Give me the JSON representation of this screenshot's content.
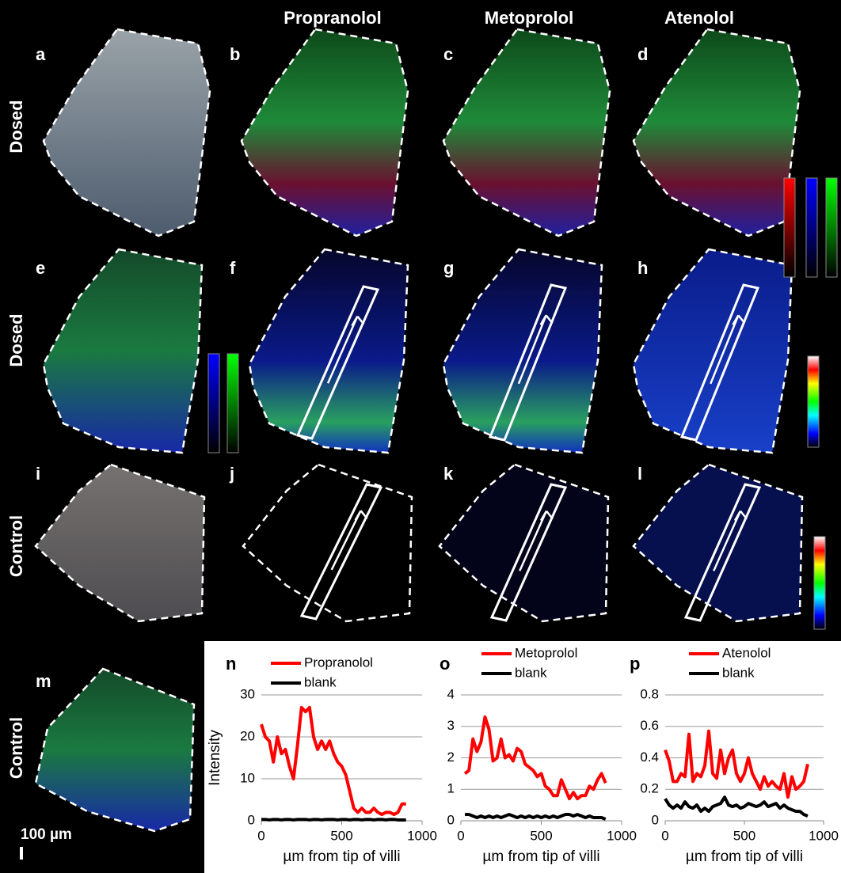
{
  "figure": {
    "column_headers": [
      "Propranolol",
      "Metoprolol",
      "Atenolol"
    ],
    "row_labels": [
      "Dosed",
      "Dosed",
      "Control",
      "Control"
    ],
    "panel_letters": [
      "a",
      "b",
      "c",
      "d",
      "e",
      "f",
      "g",
      "h",
      "i",
      "j",
      "k",
      "l",
      "m",
      "n",
      "o",
      "p"
    ],
    "scale_bar": "100 µm"
  },
  "chart_data": [
    {
      "type": "line",
      "y_label": "Intensity",
      "x_label": "µm from tip of villi",
      "xlim": [
        0,
        1000
      ],
      "xticks": [
        0,
        500,
        1000
      ],
      "ylim": [
        0,
        30
      ],
      "yticks": [
        0,
        10,
        20,
        30
      ],
      "grid": true,
      "x": [
        0,
        25,
        50,
        75,
        100,
        125,
        150,
        175,
        200,
        225,
        250,
        275,
        300,
        325,
        350,
        375,
        400,
        425,
        450,
        475,
        500,
        525,
        550,
        575,
        600,
        625,
        650,
        675,
        700,
        725,
        750,
        775,
        800,
        825,
        850,
        875,
        900
      ],
      "series": [
        {
          "name": "Propranolol",
          "color": "#ff0000",
          "values": [
            23,
            20,
            19,
            14,
            20,
            16,
            17,
            13,
            10,
            18,
            27,
            26,
            27,
            20,
            17,
            19,
            17,
            19,
            16,
            14,
            13,
            11,
            7,
            3,
            2,
            3,
            2,
            2,
            3,
            2,
            1.5,
            2,
            2,
            1.5,
            2,
            4,
            4
          ]
        },
        {
          "name": "blank",
          "color": "#000000",
          "values": [
            0.3,
            0.3,
            0.2,
            0.3,
            0.3,
            0.2,
            0.3,
            0.3,
            0.2,
            0.3,
            0.3,
            0.3,
            0.2,
            0.3,
            0.3,
            0.2,
            0.3,
            0.3,
            0.3,
            0.2,
            0.3,
            0.3,
            0.2,
            0.3,
            0.3,
            0.2,
            0.3,
            0.3,
            0.2,
            0.3,
            0.3,
            0.2,
            0.3,
            0.3,
            0.2,
            0.2,
            0.2
          ]
        }
      ]
    },
    {
      "type": "line",
      "x_label": "µm from tip of villi",
      "xlim": [
        0,
        1000
      ],
      "xticks": [
        0,
        500,
        1000
      ],
      "ylim": [
        0,
        4
      ],
      "yticks": [
        0,
        1,
        2,
        3,
        4
      ],
      "grid": true,
      "x": [
        25,
        50,
        75,
        100,
        125,
        150,
        175,
        200,
        225,
        250,
        275,
        300,
        325,
        350,
        375,
        400,
        425,
        450,
        475,
        500,
        525,
        550,
        575,
        600,
        625,
        650,
        675,
        700,
        725,
        750,
        775,
        800,
        825,
        850,
        875,
        900
      ],
      "series": [
        {
          "name": "Metoprolol",
          "color": "#ff0000",
          "values": [
            1.5,
            1.6,
            2.6,
            2.2,
            2.5,
            3.3,
            2.9,
            1.9,
            2.0,
            2.6,
            2.0,
            2.1,
            1.9,
            2.3,
            2.2,
            1.8,
            1.7,
            1.6,
            1.4,
            1.5,
            1.1,
            1.0,
            0.8,
            0.8,
            1.3,
            1.0,
            0.7,
            0.9,
            0.7,
            0.8,
            0.8,
            1.1,
            1.0,
            1.3,
            1.5,
            1.2
          ]
        },
        {
          "name": "blank",
          "color": "#000000",
          "values": [
            0.2,
            0.2,
            0.15,
            0.1,
            0.15,
            0.1,
            0.15,
            0.1,
            0.15,
            0.1,
            0.15,
            0.2,
            0.15,
            0.1,
            0.15,
            0.1,
            0.15,
            0.1,
            0.15,
            0.1,
            0.15,
            0.1,
            0.15,
            0.1,
            0.15,
            0.2,
            0.2,
            0.15,
            0.2,
            0.15,
            0.1,
            0.15,
            0.1,
            0.1,
            0.1,
            0.05
          ]
        }
      ]
    },
    {
      "type": "line",
      "x_label": "µm from tip of villi",
      "xlim": [
        0,
        1000
      ],
      "xticks": [
        0,
        500,
        1000
      ],
      "ylim": [
        0,
        0.8
      ],
      "yticks": [
        0,
        0.2,
        0.4,
        0.6,
        0.8
      ],
      "grid": true,
      "x": [
        0,
        25,
        50,
        75,
        100,
        125,
        150,
        175,
        200,
        225,
        250,
        275,
        300,
        325,
        350,
        375,
        400,
        425,
        450,
        475,
        500,
        525,
        550,
        575,
        600,
        625,
        650,
        675,
        700,
        725,
        750,
        775,
        800,
        825,
        850,
        875,
        900
      ],
      "series": [
        {
          "name": "Atenolol",
          "color": "#ff0000",
          "values": [
            0.45,
            0.38,
            0.25,
            0.25,
            0.3,
            0.28,
            0.55,
            0.25,
            0.3,
            0.28,
            0.35,
            0.57,
            0.3,
            0.27,
            0.45,
            0.3,
            0.4,
            0.45,
            0.3,
            0.25,
            0.3,
            0.4,
            0.3,
            0.25,
            0.2,
            0.28,
            0.22,
            0.25,
            0.22,
            0.2,
            0.3,
            0.15,
            0.28,
            0.2,
            0.22,
            0.25,
            0.36
          ]
        },
        {
          "name": "blank",
          "color": "#000000",
          "values": [
            0.14,
            0.1,
            0.08,
            0.1,
            0.08,
            0.12,
            0.09,
            0.08,
            0.1,
            0.06,
            0.08,
            0.06,
            0.09,
            0.1,
            0.11,
            0.15,
            0.1,
            0.09,
            0.1,
            0.08,
            0.09,
            0.11,
            0.1,
            0.09,
            0.1,
            0.12,
            0.09,
            0.1,
            0.11,
            0.08,
            0.1,
            0.08,
            0.07,
            0.06,
            0.06,
            0.04,
            0.03
          ]
        }
      ]
    }
  ]
}
